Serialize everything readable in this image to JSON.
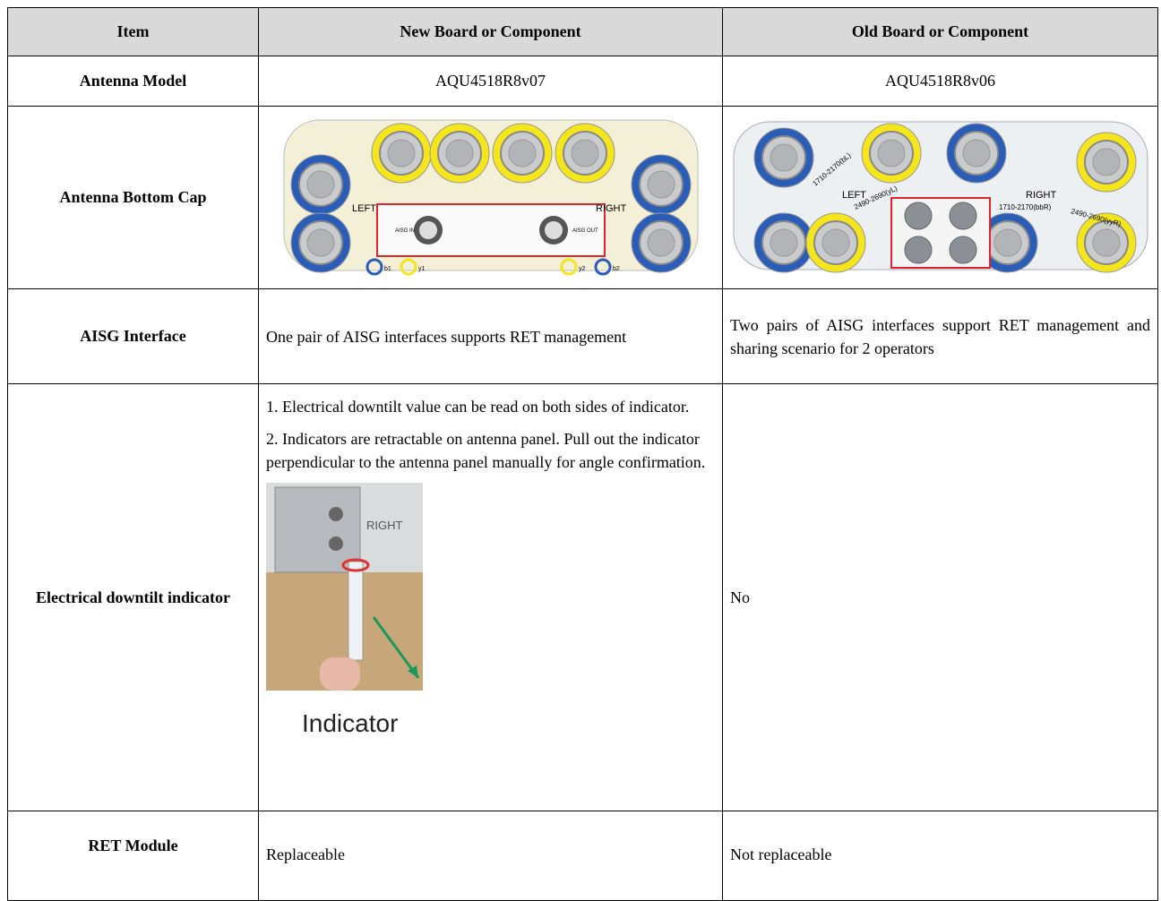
{
  "table": {
    "header": [
      "Item",
      "New Board or Component",
      "Old Board or Component"
    ],
    "rows": [
      {
        "item": "Antenna Model",
        "new": "AQU4518R8v07",
        "old": "AQU4518R8v06"
      },
      {
        "item": "Antenna Bottom Cap",
        "new": {
          "labels": [
            "LEFT",
            "RIGHT",
            "AISG IN",
            "AISG OUT",
            "b1",
            "y1",
            "y2",
            "b2"
          ]
        },
        "old": {
          "labels": [
            "LEFT",
            "RIGHT",
            "1710-2170(bL)",
            "2490-2690(yL)",
            "1710-2170(bbR)",
            "2490-2690(yyR)"
          ]
        }
      },
      {
        "item": "AISG Interface",
        "new": "One pair of AISG interfaces supports RET management",
        "old": "Two pairs of AISG interfaces support RET management and sharing scenario for 2 operators"
      },
      {
        "item": "Electrical downtilt indicator",
        "new": {
          "paragraphs": [
            "1. Electrical downtilt value can be read on both sides of indicator.",
            "2. Indicators are retractable on antenna panel. Pull out the indicator perpendicular to the antenna panel manually for angle confirmation."
          ],
          "image_labels": [
            "RIGHT",
            "Indicator"
          ]
        },
        "old": "No"
      },
      {
        "item": "RET Module",
        "new": "Replaceable",
        "old": "Not replaceable"
      }
    ]
  }
}
